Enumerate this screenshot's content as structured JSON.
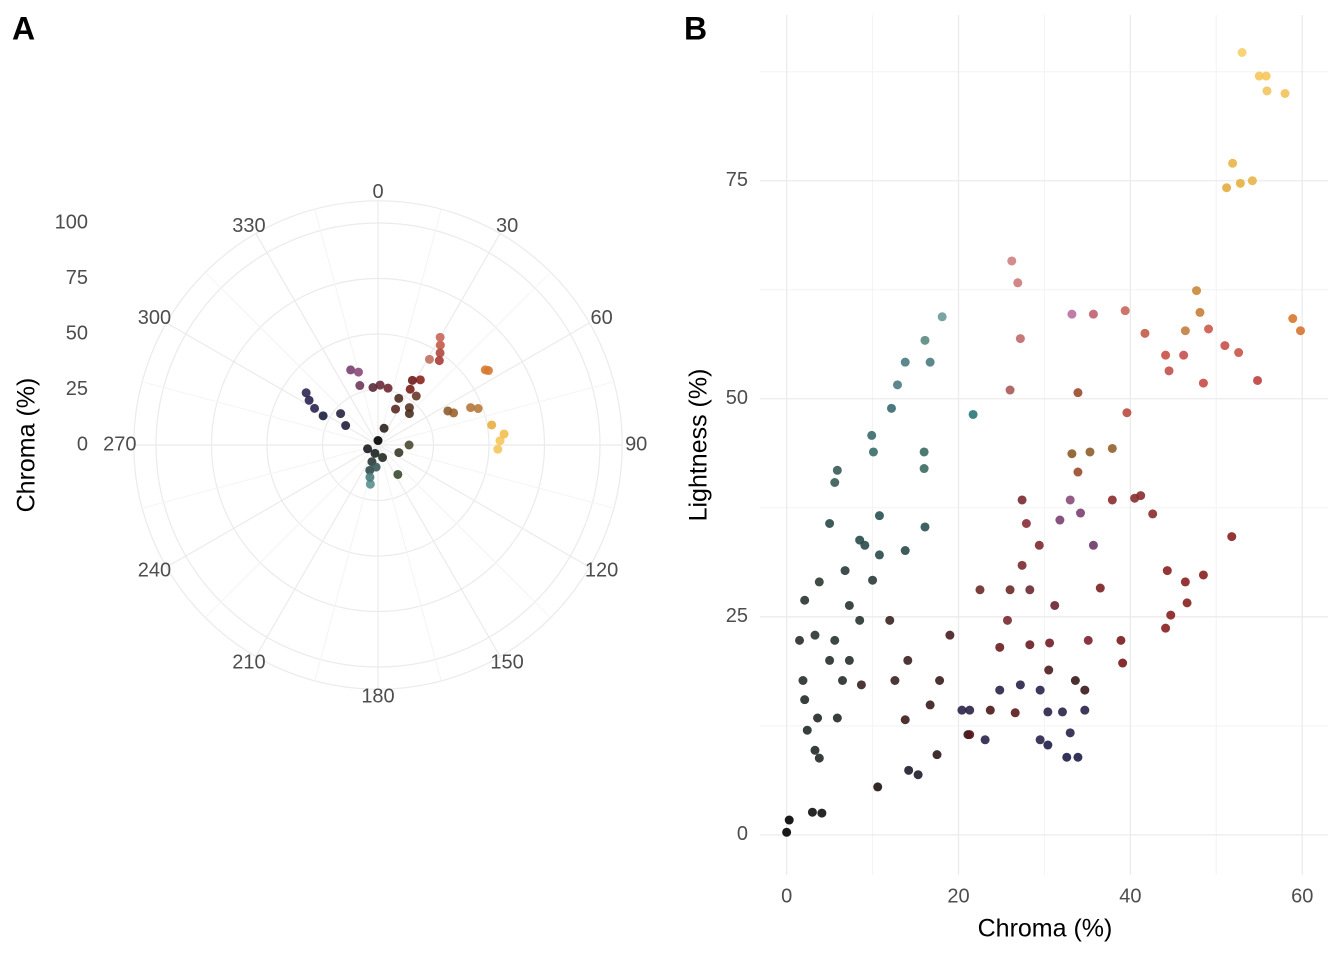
{
  "chart_data": [
    {
      "type": "polar-scatter",
      "title": "A",
      "y_label": "Chroma (%)",
      "xlim": [
        0,
        360
      ],
      "xticks": [
        0,
        30,
        60,
        90,
        120,
        150,
        180,
        210,
        240,
        270,
        300,
        330
      ],
      "ylim": [
        0,
        110
      ],
      "yticks": [
        0,
        25,
        50,
        75,
        100
      ],
      "grid": true,
      "x": [
        88,
        85,
        92,
        80,
        56,
        55,
        70,
        68,
        67,
        64,
        32,
        30,
        34,
        31,
        36,
        33,
        30,
        28,
        26,
        24,
        38,
        40,
        45,
        2,
        10,
        355,
        343,
        340,
        345,
        303,
        300,
        306,
        298,
        301,
        310,
        198,
        191,
        194,
        200,
        185,
        146,
        90,
        110,
        0,
        200,
        20,
        160,
        250
      ],
      "values": [
        55,
        57,
        54,
        52,
        60,
        59,
        48,
        45,
        37,
        35,
        53,
        56,
        50,
        45,
        47,
        35,
        29,
        33,
        18,
        23,
        28,
        22,
        20,
        27,
        26,
        26,
        28,
        36,
        34,
        37,
        33,
        40,
        28,
        17,
        22,
        12,
        18,
        15,
        8,
        10,
        16,
        14,
        10,
        2,
        4,
        8,
        6,
        5
      ],
      "colors": [
        "#f5c85a",
        "#f2c050",
        "#f3c65c",
        "#e8b040",
        "#d8782c",
        "#d67a30",
        "#b87a38",
        "#b5783a",
        "#9a6430",
        "#8e5c2c",
        "#c45a48",
        "#c8665a",
        "#b04840",
        "#c07060",
        "#a83c34",
        "#8a2420",
        "#7a2018",
        "#6e1c1a",
        "#5a2a22",
        "#4e2a20",
        "#6a3a28",
        "#5a3424",
        "#4a3020",
        "#6a2a38",
        "#6e2832",
        "#5a2a3a",
        "#6e3a5a",
        "#7a4070",
        "#8a4a7a",
        "#2a2450",
        "#2a2650",
        "#30284e",
        "#1e1e40",
        "#22203c",
        "#28243e",
        "#2c4a4a",
        "#5a9090",
        "#4a7c7c",
        "#2a3a3a",
        "#3a5a5a",
        "#3a4a30",
        "#4a4a30",
        "#3a3a28",
        "#000000",
        "#1a2222",
        "#2a2420",
        "#222a22",
        "#1a1a22"
      ]
    },
    {
      "type": "scatter",
      "title": "B",
      "x_label": "Chroma (%)",
      "y_label": "Lightness (%)",
      "xlim": [
        -3.1,
        63
      ],
      "xticks": [
        0,
        20,
        40,
        60
      ],
      "ylim": [
        -4.6,
        94
      ],
      "yticks": [
        0,
        25,
        50,
        75
      ],
      "grid": true,
      "x": [
        53,
        55,
        55.8,
        55.9,
        58,
        51.9,
        51.2,
        52.8,
        54.2,
        58.9,
        59.8,
        47.7,
        48.1,
        46.4,
        39.4,
        41.7,
        44.1,
        46.2,
        49.1,
        51,
        52.6,
        54.8,
        48.5,
        44.5,
        39.6,
        26.2,
        26.9,
        27.2,
        26,
        33.2,
        35.7,
        18.1,
        16.1,
        16.7,
        13.8,
        12.9,
        12.2,
        21.7,
        9.9,
        10.1,
        16,
        16,
        5.9,
        5.6,
        33.2,
        35.3,
        37.9,
        33.9,
        33.9,
        33,
        34.2,
        35.7,
        31.8,
        27.4,
        27.9,
        29.4,
        27.4,
        26,
        25.7,
        22.5,
        28.3,
        31.2,
        24.8,
        28.3,
        30.6,
        35.1,
        38.9,
        39.1,
        36.5,
        37.9,
        40.5,
        42.6,
        41.2,
        44.3,
        46.4,
        48.5,
        44.7,
        46.6,
        44.1,
        51.8,
        8.5,
        9.1,
        10.8,
        10.8,
        13.8,
        16.1,
        5,
        6.8,
        10,
        2.1,
        3.8,
        3.3,
        1.5,
        1.9,
        2.1,
        2.4,
        3.3,
        3.8,
        5.6,
        7.3,
        8.5,
        5,
        3.6,
        5.9,
        6.5,
        7.3,
        0,
        0.3,
        3,
        4.1,
        10.6,
        8.7,
        12.6,
        13.8,
        16.7,
        17.8,
        14.1,
        14.2,
        15.3,
        17.5,
        19,
        12,
        21.3,
        23.1,
        21.1,
        24.8,
        27.2,
        29.5,
        30.4,
        29.5,
        32.1,
        33,
        33.9,
        32.6,
        34.7,
        30.4,
        20.4,
        26.6,
        23.7,
        33.6,
        34.7,
        21.3,
        30.5
      ],
      "values": [
        89.7,
        87,
        87,
        85.3,
        85,
        77,
        74.2,
        74.7,
        75,
        59.2,
        57.8,
        62.4,
        59.9,
        57.8,
        60.1,
        57.5,
        55,
        55,
        58,
        56.1,
        55.3,
        52.1,
        51.8,
        53.2,
        48.4,
        65.8,
        63.3,
        56.9,
        51,
        59.7,
        59.7,
        59.4,
        56.7,
        54.2,
        54.2,
        51.6,
        48.9,
        48.2,
        45.8,
        43.9,
        43.9,
        42,
        41.8,
        40.4,
        43.7,
        43.9,
        44.3,
        41.6,
        50.7,
        38.4,
        36.9,
        33.2,
        36.1,
        38.4,
        35.7,
        33.2,
        30.9,
        28.1,
        24.6,
        28.1,
        28.1,
        26.3,
        21.5,
        21.8,
        22,
        22.3,
        22.3,
        19.7,
        28.3,
        38.4,
        38.6,
        36.8,
        38.9,
        30.3,
        29,
        29.8,
        25.2,
        26.6,
        23.7,
        34.2,
        33.8,
        33.2,
        32.1,
        36.6,
        32.6,
        35.3,
        35.7,
        30.3,
        29.2,
        26.9,
        29,
        22.9,
        22.3,
        17.7,
        15.5,
        12,
        9.7,
        8.8,
        22.3,
        26.3,
        24.6,
        20,
        13.4,
        13.4,
        17.7,
        20,
        0.3,
        1.7,
        2.6,
        2.5,
        5.5,
        17.2,
        17.7,
        13.2,
        14.9,
        17.7,
        20,
        7.4,
        6.9,
        9.2,
        22.9,
        24.6,
        14.3,
        10.9,
        11.5,
        16.6,
        17.2,
        16.6,
        14.1,
        10.9,
        14.1,
        11.7,
        8.9,
        8.9,
        14.3,
        10.3,
        14.3,
        14,
        14.3,
        17.7,
        16.6,
        11.5,
        18.9
      ],
      "colors": [
        "#f7cf6a",
        "#f5c85a",
        "#f5c85a",
        "#f3c460",
        "#f2c258",
        "#e8b648",
        "#e4ac40",
        "#e6b040",
        "#e8b448",
        "#d8782c",
        "#d67430",
        "#c88a38",
        "#c8803a",
        "#c08040",
        "#c8665a",
        "#c45a48",
        "#c85048",
        "#c85050",
        "#cc5a4a",
        "#c8504a",
        "#c85448",
        "#c04040",
        "#c84a48",
        "#c45050",
        "#b84a40",
        "#d08080",
        "#cc7a7a",
        "#c06a6a",
        "#a85a5a",
        "#b870a0",
        "#c06070",
        "#6a9a98",
        "#5a8a80",
        "#4a7a80",
        "#4a7a80",
        "#4a7a80",
        "#3a6a70",
        "#2a7878",
        "#3a6a6a",
        "#3a6a6a",
        "#3a6a60",
        "#3a6a60",
        "#3a5a58",
        "#3a5a58",
        "#8a5a28",
        "#8e5c2c",
        "#94602c",
        "#9a4a2c",
        "#9a4a2c",
        "#8a4a7a",
        "#7a4070",
        "#6a3a68",
        "#7a4070",
        "#7a2830",
        "#8a2c38",
        "#7a2a30",
        "#7a2a30",
        "#6a2a28",
        "#7a2830",
        "#6a2a28",
        "#6a2a30",
        "#6a2430",
        "#6a1c20",
        "#6a1c24",
        "#701c24",
        "#7a2030",
        "#7a1c1c",
        "#7a1818",
        "#7a2020",
        "#8a2c2c",
        "#8a2c2c",
        "#8a2c2c",
        "#8a2c2c",
        "#8a2020",
        "#8a2020",
        "#8a2020",
        "#8a2020",
        "#8a2020",
        "#8a2020",
        "#8a2020",
        "#2a4a4a",
        "#2a4a4a",
        "#2a4a4a",
        "#2a5050",
        "#2a4a4a",
        "#2a5050",
        "#2a4848",
        "#2a3a38",
        "#2a3a38",
        "#2a3430",
        "#2a3a30",
        "#2a3430",
        "#262e2c",
        "#262e2c",
        "#222a2a",
        "#222a2a",
        "#222828",
        "#222828",
        "#263430",
        "#263430",
        "#263430",
        "#262e2c",
        "#222828",
        "#222828",
        "#262e2c",
        "#262e2c",
        "#000000",
        "#000000",
        "#101010",
        "#101010",
        "#1e1010",
        "#3a2020",
        "#3a2020",
        "#3a1c1c",
        "#3a1c1c",
        "#3a1c1c",
        "#3a2020",
        "#1e1c2c",
        "#1e1c2c",
        "#2a1818",
        "#4a1c24",
        "#3a2222",
        "#2a2248",
        "#2a2248",
        "#2a1828",
        "#2a2248",
        "#2a2248",
        "#2a2248",
        "#2a2248",
        "#2a2248",
        "#2a2248",
        "#2a2248",
        "#1e1e48",
        "#1e1e48",
        "#2a2248",
        "#1e1e48",
        "#2a2248",
        "#5a1818",
        "#4a1818",
        "#3a1818",
        "#3a1818",
        "#5a1818",
        "#4a1c1c"
      ]
    }
  ]
}
